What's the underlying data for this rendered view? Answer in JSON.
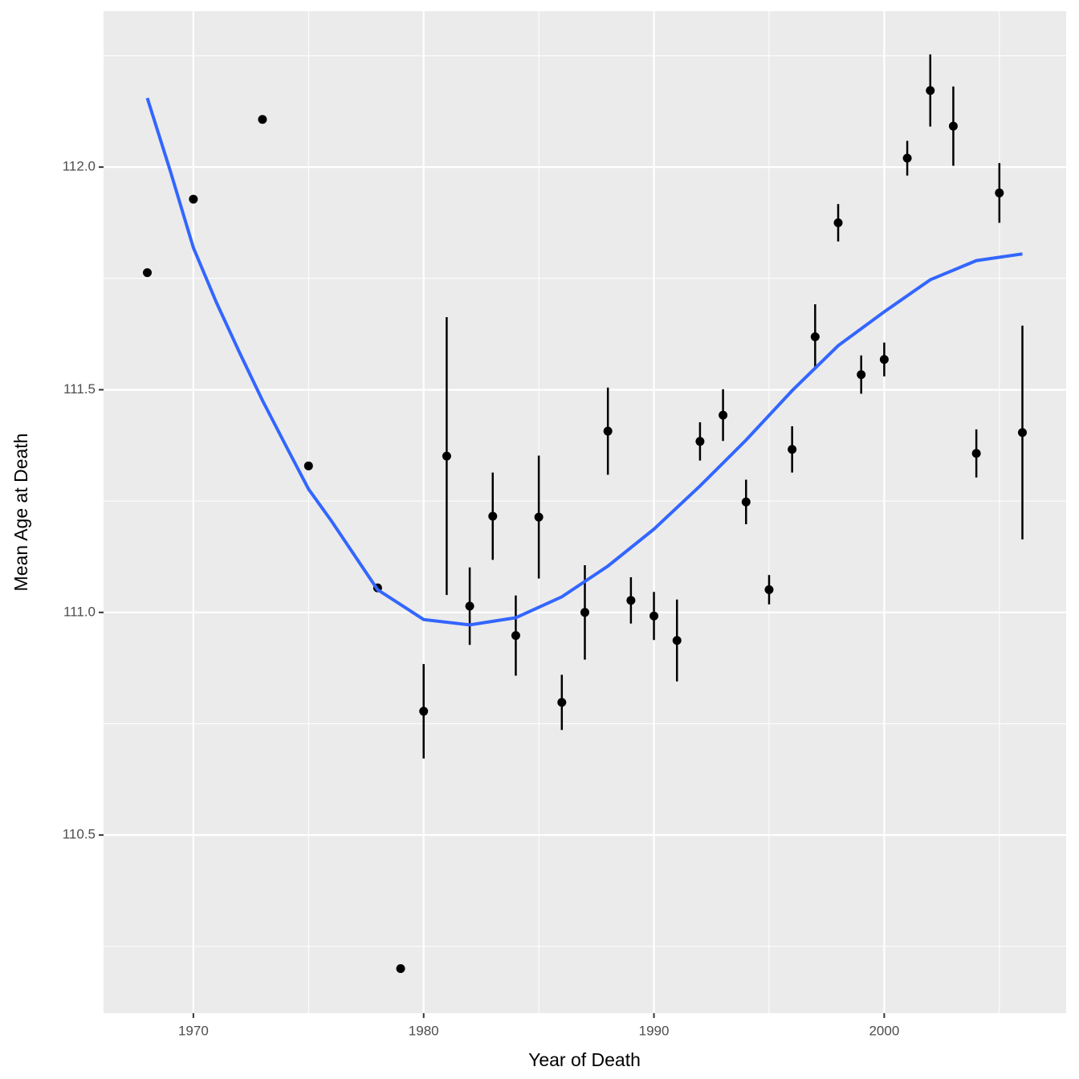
{
  "chart_data": {
    "type": "scatter",
    "x_label": "Year of Death",
    "y_label": "Mean Age at Death",
    "xlim": [
      1966.1,
      2007.9
    ],
    "ylim": [
      110.1,
      112.35
    ],
    "xticks": [
      1970,
      1980,
      1990,
      2000
    ],
    "yticks": [
      {
        "value": 110.5,
        "label": "110.5"
      },
      {
        "value": 111,
        "label": "111.0"
      },
      {
        "value": 111.5,
        "label": "111.5"
      },
      {
        "value": 112,
        "label": "112.0"
      }
    ],
    "x_minor_ticks": [
      1975,
      1985,
      1995,
      2005
    ],
    "y_minor_ticks": [
      110.25,
      110.75,
      111.25,
      111.75,
      112.25
    ],
    "grid": true,
    "series": [
      {
        "color": "#000000",
        "x": [
          1968,
          1970,
          1973,
          1975,
          1978,
          1979,
          1980,
          1981,
          1982,
          1983,
          1984,
          1985,
          1986,
          1987,
          1988,
          1989,
          1990,
          1991,
          1992,
          1993,
          1994,
          1995,
          1996,
          1997,
          1998,
          1999,
          2000,
          2001,
          2002,
          2003,
          2004,
          2005,
          2006
        ],
        "values": [
          111.763,
          111.928,
          112.107,
          111.329,
          111.055,
          110.2,
          110.778,
          111.351,
          111.014,
          111.216,
          110.948,
          111.214,
          110.798,
          111.0,
          111.407,
          111.027,
          110.992,
          110.937,
          111.384,
          111.443,
          111.248,
          111.051,
          111.366,
          111.619,
          111.875,
          111.534,
          111.568,
          112.02,
          112.172,
          112.092,
          111.357,
          111.942,
          111.404
        ],
        "errors": [
          null,
          null,
          null,
          null,
          null,
          null,
          0.106,
          0.312,
          0.087,
          0.098,
          0.09,
          0.138,
          0.062,
          0.106,
          0.098,
          0.052,
          0.054,
          0.092,
          0.043,
          0.058,
          0.05,
          0.033,
          0.052,
          0.073,
          0.042,
          0.043,
          0.038,
          0.039,
          0.081,
          0.089,
          0.054,
          0.067,
          0.24
        ]
      },
      {
        "type": "line",
        "color": "#3366ff",
        "x": [
          1968,
          1969,
          1970,
          1971,
          1972,
          1973,
          1974,
          1975,
          1976,
          1978,
          1980,
          1982,
          1984,
          1986,
          1988,
          1990,
          1992,
          1994,
          1996,
          1998,
          2000,
          2002,
          2004,
          2006
        ],
        "values": [
          112.155,
          111.991,
          111.819,
          111.696,
          111.584,
          111.476,
          111.376,
          111.277,
          111.205,
          111.051,
          110.984,
          110.972,
          110.988,
          111.035,
          111.104,
          111.187,
          111.284,
          111.387,
          111.498,
          111.599,
          111.675,
          111.747,
          111.79,
          111.805
        ]
      }
    ]
  }
}
